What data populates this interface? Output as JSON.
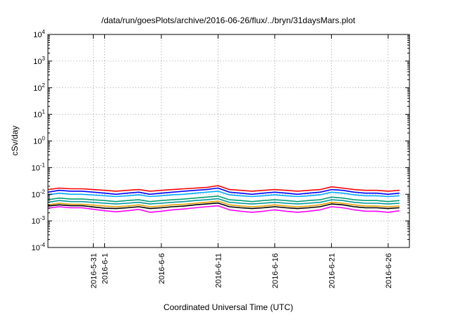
{
  "chart_data": {
    "type": "line",
    "title": "/data/run/goesPlots/archive/2016-06-26/flux/../bryn/31daysMars.plot",
    "xlabel": "Coordinated Universal Time (UTC)",
    "ylabel": "cSv/day",
    "yscale": "log",
    "ylim": [
      0.0001,
      10000
    ],
    "yticks": [
      {
        "base": "10",
        "exp": "-4"
      },
      {
        "base": "10",
        "exp": "-3"
      },
      {
        "base": "10",
        "exp": "-2"
      },
      {
        "base": "10",
        "exp": "-1"
      },
      {
        "base": "10",
        "exp": "0"
      },
      {
        "base": "10",
        "exp": "1"
      },
      {
        "base": "10",
        "exp": "2"
      },
      {
        "base": "10",
        "exp": "3"
      },
      {
        "base": "10",
        "exp": "4"
      }
    ],
    "xlim": [
      "2016-05-27",
      "2016-06-27 21:00"
    ],
    "xticks": [
      "2016-5-31",
      "2016-6-1",
      "2016-6-6",
      "2016-6-11",
      "2016-6-16",
      "2016-6-21",
      "2016-6-26"
    ],
    "grid": true,
    "legend": "none",
    "series": [
      {
        "color": "#ff0000",
        "x": [
          "2016-05-27",
          "2016-05-28",
          "2016-05-29",
          "2016-05-30",
          "2016-06-01",
          "2016-06-02",
          "2016-06-03",
          "2016-06-04",
          "2016-06-05",
          "2016-06-06",
          "2016-06-07",
          "2016-06-08",
          "2016-06-09",
          "2016-06-10",
          "2016-06-11",
          "2016-06-12",
          "2016-06-13",
          "2016-06-14",
          "2016-06-15",
          "2016-06-16",
          "2016-06-17",
          "2016-06-18",
          "2016-06-19",
          "2016-06-20",
          "2016-06-21",
          "2016-06-22",
          "2016-06-23",
          "2016-06-24",
          "2016-06-25",
          "2016-06-26",
          "2016-06-27"
        ],
        "values": [
          0.015,
          0.017,
          0.016,
          0.016,
          0.014,
          0.013,
          0.014,
          0.015,
          0.013,
          0.014,
          0.015,
          0.016,
          0.017,
          0.018,
          0.021,
          0.015,
          0.014,
          0.013,
          0.014,
          0.015,
          0.014,
          0.013,
          0.014,
          0.015,
          0.019,
          0.017,
          0.015,
          0.014,
          0.014,
          0.013,
          0.014
        ]
      },
      {
        "color": "#0000ff",
        "x": [
          "2016-05-27",
          "2016-05-28",
          "2016-05-29",
          "2016-05-30",
          "2016-06-01",
          "2016-06-02",
          "2016-06-03",
          "2016-06-04",
          "2016-06-05",
          "2016-06-06",
          "2016-06-07",
          "2016-06-08",
          "2016-06-09",
          "2016-06-10",
          "2016-06-11",
          "2016-06-12",
          "2016-06-13",
          "2016-06-14",
          "2016-06-15",
          "2016-06-16",
          "2016-06-17",
          "2016-06-18",
          "2016-06-19",
          "2016-06-20",
          "2016-06-21",
          "2016-06-22",
          "2016-06-23",
          "2016-06-24",
          "2016-06-25",
          "2016-06-26",
          "2016-06-27"
        ],
        "values": [
          0.012,
          0.014,
          0.013,
          0.013,
          0.011,
          0.01,
          0.011,
          0.012,
          0.01,
          0.011,
          0.012,
          0.013,
          0.014,
          0.015,
          0.017,
          0.012,
          0.011,
          0.01,
          0.011,
          0.012,
          0.011,
          0.01,
          0.011,
          0.012,
          0.015,
          0.014,
          0.012,
          0.011,
          0.011,
          0.01,
          0.011
        ]
      },
      {
        "color": "#00aaff",
        "x": [
          "2016-05-27",
          "2016-05-28",
          "2016-05-29",
          "2016-05-30",
          "2016-06-01",
          "2016-06-02",
          "2016-06-03",
          "2016-06-04",
          "2016-06-05",
          "2016-06-06",
          "2016-06-07",
          "2016-06-08",
          "2016-06-09",
          "2016-06-10",
          "2016-06-11",
          "2016-06-12",
          "2016-06-13",
          "2016-06-14",
          "2016-06-15",
          "2016-06-16",
          "2016-06-17",
          "2016-06-18",
          "2016-06-19",
          "2016-06-20",
          "2016-06-21",
          "2016-06-22",
          "2016-06-23",
          "2016-06-24",
          "2016-06-25",
          "2016-06-26",
          "2016-06-27"
        ],
        "values": [
          0.0095,
          0.011,
          0.01,
          0.01,
          0.0088,
          0.0082,
          0.0088,
          0.0095,
          0.0082,
          0.0088,
          0.0095,
          0.01,
          0.011,
          0.012,
          0.013,
          0.0095,
          0.0088,
          0.0082,
          0.0088,
          0.0095,
          0.0088,
          0.0082,
          0.0088,
          0.0095,
          0.012,
          0.011,
          0.0095,
          0.0088,
          0.0088,
          0.0082,
          0.0088
        ]
      },
      {
        "color": "#009e73",
        "x": [
          "2016-05-27",
          "2016-05-28",
          "2016-05-29",
          "2016-05-30",
          "2016-06-01",
          "2016-06-02",
          "2016-06-03",
          "2016-06-04",
          "2016-06-05",
          "2016-06-06",
          "2016-06-07",
          "2016-06-08",
          "2016-06-09",
          "2016-06-10",
          "2016-06-11",
          "2016-06-12",
          "2016-06-13",
          "2016-06-14",
          "2016-06-15",
          "2016-06-16",
          "2016-06-17",
          "2016-06-18",
          "2016-06-19",
          "2016-06-20",
          "2016-06-21",
          "2016-06-22",
          "2016-06-23",
          "2016-06-24",
          "2016-06-25",
          "2016-06-26",
          "2016-06-27"
        ],
        "values": [
          0.0062,
          0.0072,
          0.0066,
          0.0066,
          0.0058,
          0.0053,
          0.0058,
          0.0062,
          0.0053,
          0.0058,
          0.0062,
          0.0066,
          0.0072,
          0.0078,
          0.0085,
          0.0062,
          0.0058,
          0.0053,
          0.0058,
          0.0062,
          0.0058,
          0.0053,
          0.0058,
          0.0062,
          0.0078,
          0.0072,
          0.0062,
          0.0058,
          0.0058,
          0.0053,
          0.0058
        ]
      },
      {
        "color": "#009999",
        "x": [
          "2016-05-27",
          "2016-05-28",
          "2016-05-29",
          "2016-05-30",
          "2016-06-01",
          "2016-06-02",
          "2016-06-03",
          "2016-06-04",
          "2016-06-05",
          "2016-06-06",
          "2016-06-07",
          "2016-06-08",
          "2016-06-09",
          "2016-06-10",
          "2016-06-11",
          "2016-06-12",
          "2016-06-13",
          "2016-06-14",
          "2016-06-15",
          "2016-06-16",
          "2016-06-17",
          "2016-06-18",
          "2016-06-19",
          "2016-06-20",
          "2016-06-21",
          "2016-06-22",
          "2016-06-23",
          "2016-06-24",
          "2016-06-25",
          "2016-06-26",
          "2016-06-27"
        ],
        "values": [
          0.005,
          0.0058,
          0.0053,
          0.0053,
          0.0046,
          0.0043,
          0.0046,
          0.005,
          0.0043,
          0.0046,
          0.005,
          0.0053,
          0.0058,
          0.0062,
          0.0068,
          0.005,
          0.0046,
          0.0043,
          0.0046,
          0.005,
          0.0046,
          0.0043,
          0.0046,
          0.005,
          0.0062,
          0.0058,
          0.005,
          0.0046,
          0.0046,
          0.0043,
          0.0046
        ]
      },
      {
        "color": "#e69f00",
        "x": [
          "2016-05-27",
          "2016-05-28",
          "2016-05-29",
          "2016-05-30",
          "2016-06-01",
          "2016-06-02",
          "2016-06-03",
          "2016-06-04",
          "2016-06-05",
          "2016-06-06",
          "2016-06-07",
          "2016-06-08",
          "2016-06-09",
          "2016-06-10",
          "2016-06-11",
          "2016-06-12",
          "2016-06-13",
          "2016-06-14",
          "2016-06-15",
          "2016-06-16",
          "2016-06-17",
          "2016-06-18",
          "2016-06-19",
          "2016-06-20",
          "2016-06-21",
          "2016-06-22",
          "2016-06-23",
          "2016-06-24",
          "2016-06-25",
          "2016-06-26",
          "2016-06-27"
        ],
        "values": [
          0.004,
          0.0046,
          0.0042,
          0.0042,
          0.0036,
          0.0034,
          0.0036,
          0.004,
          0.0034,
          0.0036,
          0.004,
          0.0042,
          0.0046,
          0.005,
          0.0055,
          0.004,
          0.0036,
          0.0034,
          0.0036,
          0.004,
          0.0036,
          0.0034,
          0.0036,
          0.004,
          0.005,
          0.0046,
          0.004,
          0.0036,
          0.0036,
          0.0034,
          0.0036
        ]
      },
      {
        "color": "#000000",
        "x": [
          "2016-05-27",
          "2016-05-28",
          "2016-05-29",
          "2016-05-30",
          "2016-06-01",
          "2016-06-02",
          "2016-06-03",
          "2016-06-04",
          "2016-06-05",
          "2016-06-06",
          "2016-06-07",
          "2016-06-08",
          "2016-06-09",
          "2016-06-10",
          "2016-06-11",
          "2016-06-12",
          "2016-06-13",
          "2016-06-14",
          "2016-06-15",
          "2016-06-16",
          "2016-06-17",
          "2016-06-18",
          "2016-06-19",
          "2016-06-20",
          "2016-06-21",
          "2016-06-22",
          "2016-06-23",
          "2016-06-24",
          "2016-06-25",
          "2016-06-26",
          "2016-06-27"
        ],
        "values": [
          0.0036,
          0.004,
          0.0037,
          0.0037,
          0.003,
          0.0029,
          0.0031,
          0.0034,
          0.0029,
          0.0031,
          0.0034,
          0.0036,
          0.004,
          0.0043,
          0.0047,
          0.0034,
          0.0031,
          0.0029,
          0.0031,
          0.0034,
          0.0031,
          0.0029,
          0.0031,
          0.0034,
          0.0043,
          0.004,
          0.0034,
          0.0031,
          0.0031,
          0.0029,
          0.0031
        ]
      },
      {
        "color": "#ff00ff",
        "x": [
          "2016-05-27",
          "2016-05-28",
          "2016-05-29",
          "2016-05-30",
          "2016-06-01",
          "2016-06-02",
          "2016-06-03",
          "2016-06-04",
          "2016-06-05",
          "2016-06-06",
          "2016-06-07",
          "2016-06-08",
          "2016-06-09",
          "2016-06-10",
          "2016-06-11",
          "2016-06-12",
          "2016-06-13",
          "2016-06-14",
          "2016-06-15",
          "2016-06-16",
          "2016-06-17",
          "2016-06-18",
          "2016-06-19",
          "2016-06-20",
          "2016-06-21",
          "2016-06-22",
          "2016-06-23",
          "2016-06-24",
          "2016-06-25",
          "2016-06-26",
          "2016-06-27"
        ],
        "values": [
          0.003,
          0.0034,
          0.0031,
          0.0031,
          0.0024,
          0.0022,
          0.0024,
          0.0027,
          0.0021,
          0.0023,
          0.0026,
          0.0028,
          0.0031,
          0.0034,
          0.0037,
          0.0026,
          0.0023,
          0.0021,
          0.0023,
          0.0026,
          0.0023,
          0.0021,
          0.0023,
          0.0026,
          0.0034,
          0.0031,
          0.0026,
          0.0023,
          0.0023,
          0.0021,
          0.0024
        ]
      }
    ]
  }
}
